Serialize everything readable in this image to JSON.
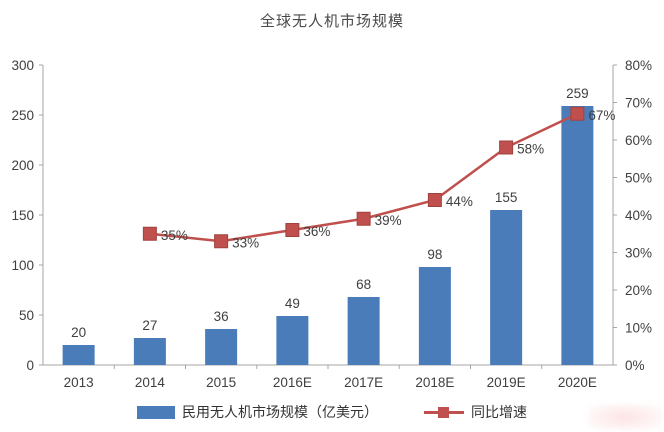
{
  "chart_data": {
    "type": "bar",
    "subtype": "combo-bar-line",
    "title": "全球无人机市场规模",
    "categories": [
      "2013",
      "2014",
      "2015",
      "2016E",
      "2017E",
      "2018E",
      "2019E",
      "2020E"
    ],
    "series": [
      {
        "name": "民用无人机市场规模（亿美元）",
        "type": "bar",
        "axis": "left",
        "values": [
          20,
          27,
          36,
          49,
          68,
          98,
          155,
          259
        ],
        "color": "#4a7cba"
      },
      {
        "name": "同比增速",
        "type": "line",
        "axis": "right",
        "x_start_index": 1,
        "values": [
          35,
          33,
          36,
          39,
          44,
          58,
          67
        ],
        "labels": [
          "35%",
          "33%",
          "36%",
          "39%",
          "44%",
          "58%",
          "67%"
        ],
        "color": "#c0504d",
        "marker_border": "#a1423f"
      }
    ],
    "left_axis": {
      "min": 0,
      "max": 300,
      "ticks": [
        "0",
        "50",
        "100",
        "150",
        "200",
        "250",
        "300"
      ]
    },
    "right_axis": {
      "min": 0,
      "max": 80,
      "ticks": [
        "0%",
        "10%",
        "20%",
        "30%",
        "40%",
        "50%",
        "60%",
        "70%",
        "80%"
      ]
    },
    "legend": {
      "bar_label": "民用无人机市场规模（亿美元）",
      "line_label": "同比增速"
    },
    "layout_hints": {
      "grid": false,
      "legend_position": "bottom",
      "axis_color": "#a6a6a6",
      "text_color": "#3f3f3f"
    }
  }
}
